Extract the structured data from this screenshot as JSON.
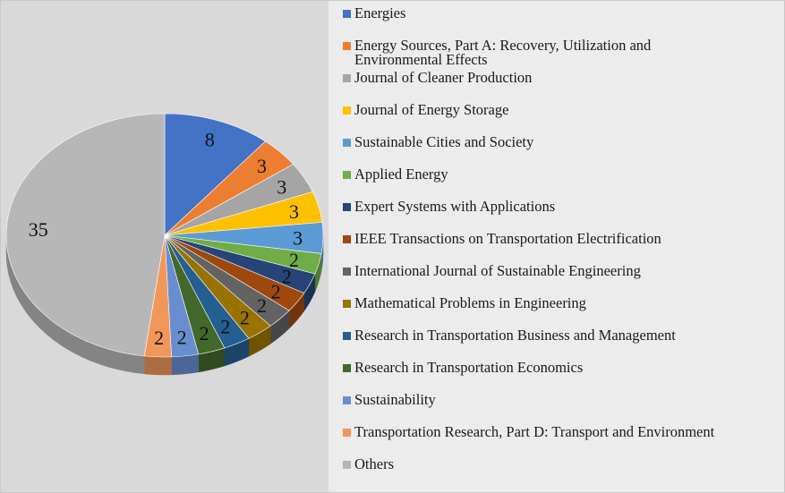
{
  "chart_data": {
    "type": "pie",
    "title": "",
    "legend_position": "right",
    "categories": [
      "Energies",
      "Energy Sources, Part A: Recovery, Utilization and Environmental Effects",
      "Journal of Cleaner Production",
      "Journal of Energy Storage",
      "Sustainable Cities and Society",
      "Applied Energy",
      "Expert Systems with Applications",
      "IEEE Transactions on Transportation Electrification",
      "International Journal of Sustainable Engineering",
      "Mathematical Problems in Engineering",
      "Research in Transportation Business and Management",
      "Research in Transportation Economics",
      "Sustainability",
      "Transportation Research, Part D: Transport and Environment",
      "Others"
    ],
    "values": [
      8,
      3,
      3,
      3,
      3,
      2,
      2,
      2,
      2,
      2,
      2,
      2,
      2,
      2,
      35
    ],
    "value_labels": [
      "8",
      "3",
      "3",
      "3",
      "3",
      "2",
      "2",
      "2",
      "2",
      "2",
      "2",
      "2",
      "2",
      "2",
      "35"
    ],
    "colors": [
      "#4472c4",
      "#ed7d31",
      "#a5a5a5",
      "#ffc000",
      "#5b9bd5",
      "#70ad47",
      "#264478",
      "#9e480e",
      "#636363",
      "#997300",
      "#255e91",
      "#43682b",
      "#698ed0",
      "#f1975a",
      "#b7b7b7"
    ]
  }
}
